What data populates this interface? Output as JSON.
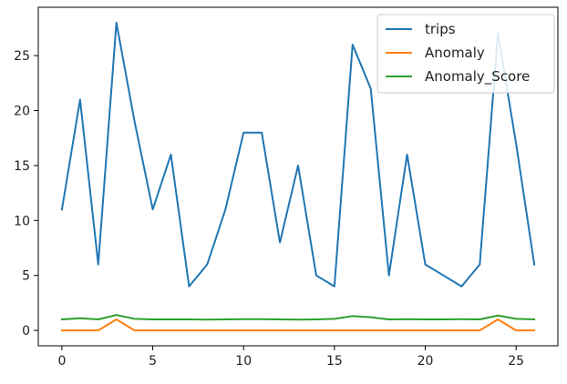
{
  "chart_data": {
    "type": "line",
    "title": "",
    "xlabel": "",
    "ylabel": "",
    "x": [
      0,
      1,
      2,
      3,
      4,
      5,
      6,
      7,
      8,
      9,
      10,
      11,
      12,
      13,
      14,
      15,
      16,
      17,
      18,
      19,
      20,
      21,
      22,
      23,
      24,
      25,
      26
    ],
    "xlim": [
      -1.3,
      27.3
    ],
    "ylim": [
      -1.4,
      29.4
    ],
    "xticks": [
      0,
      5,
      10,
      15,
      20,
      25
    ],
    "yticks": [
      0,
      5,
      10,
      15,
      20,
      25
    ],
    "grid": false,
    "legend_position": "top-right",
    "series": [
      {
        "name": "trips",
        "color": "#1f77b4",
        "values": [
          11,
          21,
          6,
          28,
          19,
          11,
          16,
          4,
          6,
          11,
          18,
          18,
          8,
          15,
          5,
          4,
          26,
          22,
          5,
          16,
          6,
          5,
          4,
          6,
          27,
          17,
          6
        ]
      },
      {
        "name": "Anomaly",
        "color": "#ff7f0e",
        "values": [
          0,
          0,
          0,
          1,
          0,
          0,
          0,
          0,
          0,
          0,
          0,
          0,
          0,
          0,
          0,
          0,
          0,
          0,
          0,
          0,
          0,
          0,
          0,
          0,
          1,
          0,
          0
        ]
      },
      {
        "name": "Anomaly_Score",
        "color": "#2ca02c",
        "values": [
          1.0,
          1.1,
          1.0,
          1.4,
          1.05,
          1.0,
          1.0,
          1.0,
          0.98,
          1.0,
          1.02,
          1.02,
          1.0,
          0.98,
          1.0,
          1.05,
          1.3,
          1.2,
          1.0,
          1.02,
          1.0,
          1.0,
          1.02,
          1.0,
          1.35,
          1.05,
          1.0
        ]
      }
    ]
  }
}
